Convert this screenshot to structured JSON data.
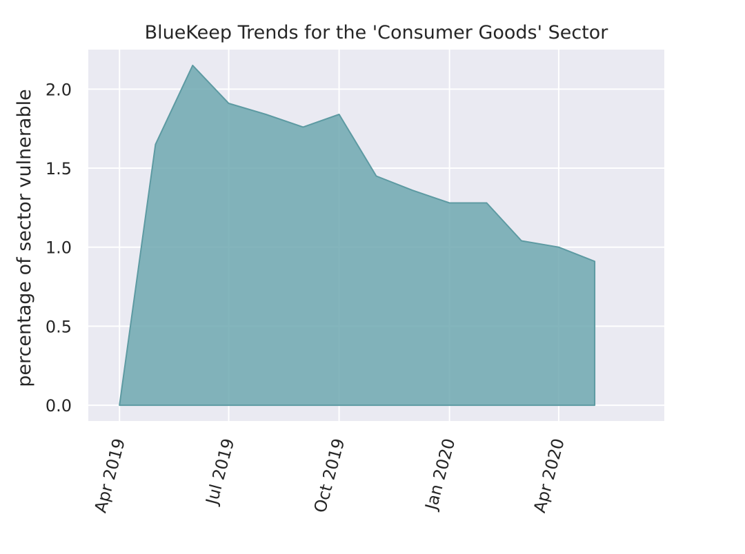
{
  "chart_data": {
    "type": "area",
    "title": "BlueKeep Trends for the 'Consumer Goods' Sector",
    "xlabel": "",
    "ylabel": "percentage of sector vulnerable",
    "x_dates": [
      "2019-04-01",
      "2019-05-01",
      "2019-06-01",
      "2019-07-01",
      "2019-08-01",
      "2019-09-01",
      "2019-10-01",
      "2019-11-01",
      "2019-12-01",
      "2020-01-01",
      "2020-02-01",
      "2020-03-01",
      "2020-04-01",
      "2020-05-01"
    ],
    "values": [
      0.0,
      1.65,
      2.15,
      1.91,
      1.84,
      1.76,
      1.84,
      1.45,
      1.36,
      1.28,
      1.28,
      1.04,
      1.0,
      0.91
    ],
    "ylim": [
      -0.1,
      2.25
    ],
    "xlim": [
      "2019-03-06",
      "2020-06-28"
    ],
    "yticks": [
      0.0,
      0.5,
      1.0,
      1.5,
      2.0
    ],
    "ytick_labels": [
      "0.0",
      "0.5",
      "1.0",
      "1.5",
      "2.0"
    ],
    "xticks": [
      "2019-04-01",
      "2019-07-01",
      "2019-10-01",
      "2020-01-01",
      "2020-04-01"
    ],
    "xtick_labels": [
      "Apr 2019",
      "Jul 2019",
      "Oct 2019",
      "Jan 2020",
      "Apr 2020"
    ],
    "grid": true,
    "colors": {
      "fill": "#6fa8b0",
      "line": "#5d9aa2",
      "plot_bg": "#eaeaf2",
      "grid": "#ffffff",
      "text": "#262626"
    }
  }
}
